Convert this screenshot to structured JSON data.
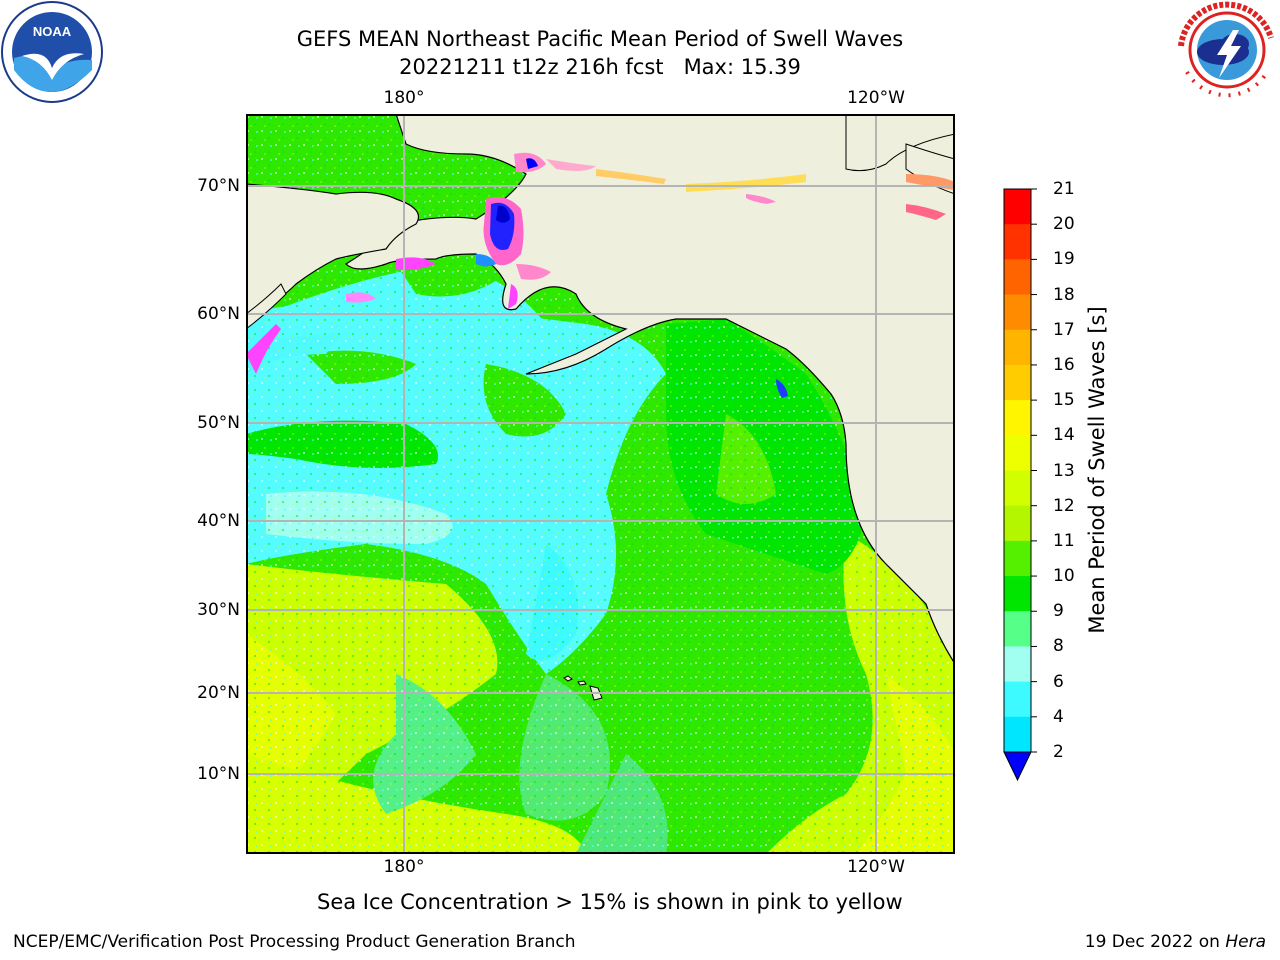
{
  "header": {
    "title_line1": "GEFS MEAN Northeast Pacific Mean Period of Swell Waves",
    "title_line2": "20221211 t12z 216h fcst   Max: 15.39"
  },
  "logos": {
    "left": {
      "name": "noaa-logo",
      "text": "NOAA",
      "ring_text": "NATIONAL OCEANIC AND ATMOSPHERIC ADMINISTRATION · U.S. DEPARTMENT OF COMMERCE"
    },
    "right": {
      "name": "nws-logo",
      "ring_text": "NATIONAL WEATHER SERVICE"
    }
  },
  "map": {
    "lon_ticks": [
      "180°",
      "120°W"
    ],
    "lat_ticks": [
      "70°N",
      "60°N",
      "50°N",
      "40°N",
      "30°N",
      "20°N",
      "10°N"
    ],
    "land_color": "#efefde",
    "ocean_field_colors": [
      "#1ee6ff",
      "#55fcff",
      "#52f08a",
      "#00e600",
      "#55f000",
      "#c8ff00",
      "#e6ff00"
    ],
    "ice_colors": [
      "#ff44ff",
      "#ff88cc",
      "#ffaa66",
      "#ffdd55",
      "#0000ff"
    ]
  },
  "colorbar": {
    "label": "Mean Period of Swell Waves [s]",
    "ticks": [
      "2",
      "4",
      "6",
      "8",
      "9",
      "10",
      "11",
      "12",
      "13",
      "14",
      "15",
      "16",
      "17",
      "18",
      "19",
      "20",
      "21"
    ],
    "colors": [
      "#0066ff",
      "#00e6ff",
      "#3cfaff",
      "#a0fff0",
      "#55ff88",
      "#00e600",
      "#55f000",
      "#b4f500",
      "#d2ff00",
      "#eeff00",
      "#fff500",
      "#ffcc00",
      "#ffb400",
      "#ff8c00",
      "#ff6400",
      "#ff3200",
      "#ff0000"
    ],
    "extend_color": "#0000ff"
  },
  "notes": {
    "sea_ice": "Sea Ice Concentration > 15% is shown in pink to yellow"
  },
  "footer": {
    "left": "NCEP/EMC/Verification Post Processing Product Generation Branch",
    "date": "19 Dec 2022 on ",
    "machine": "Hera"
  }
}
